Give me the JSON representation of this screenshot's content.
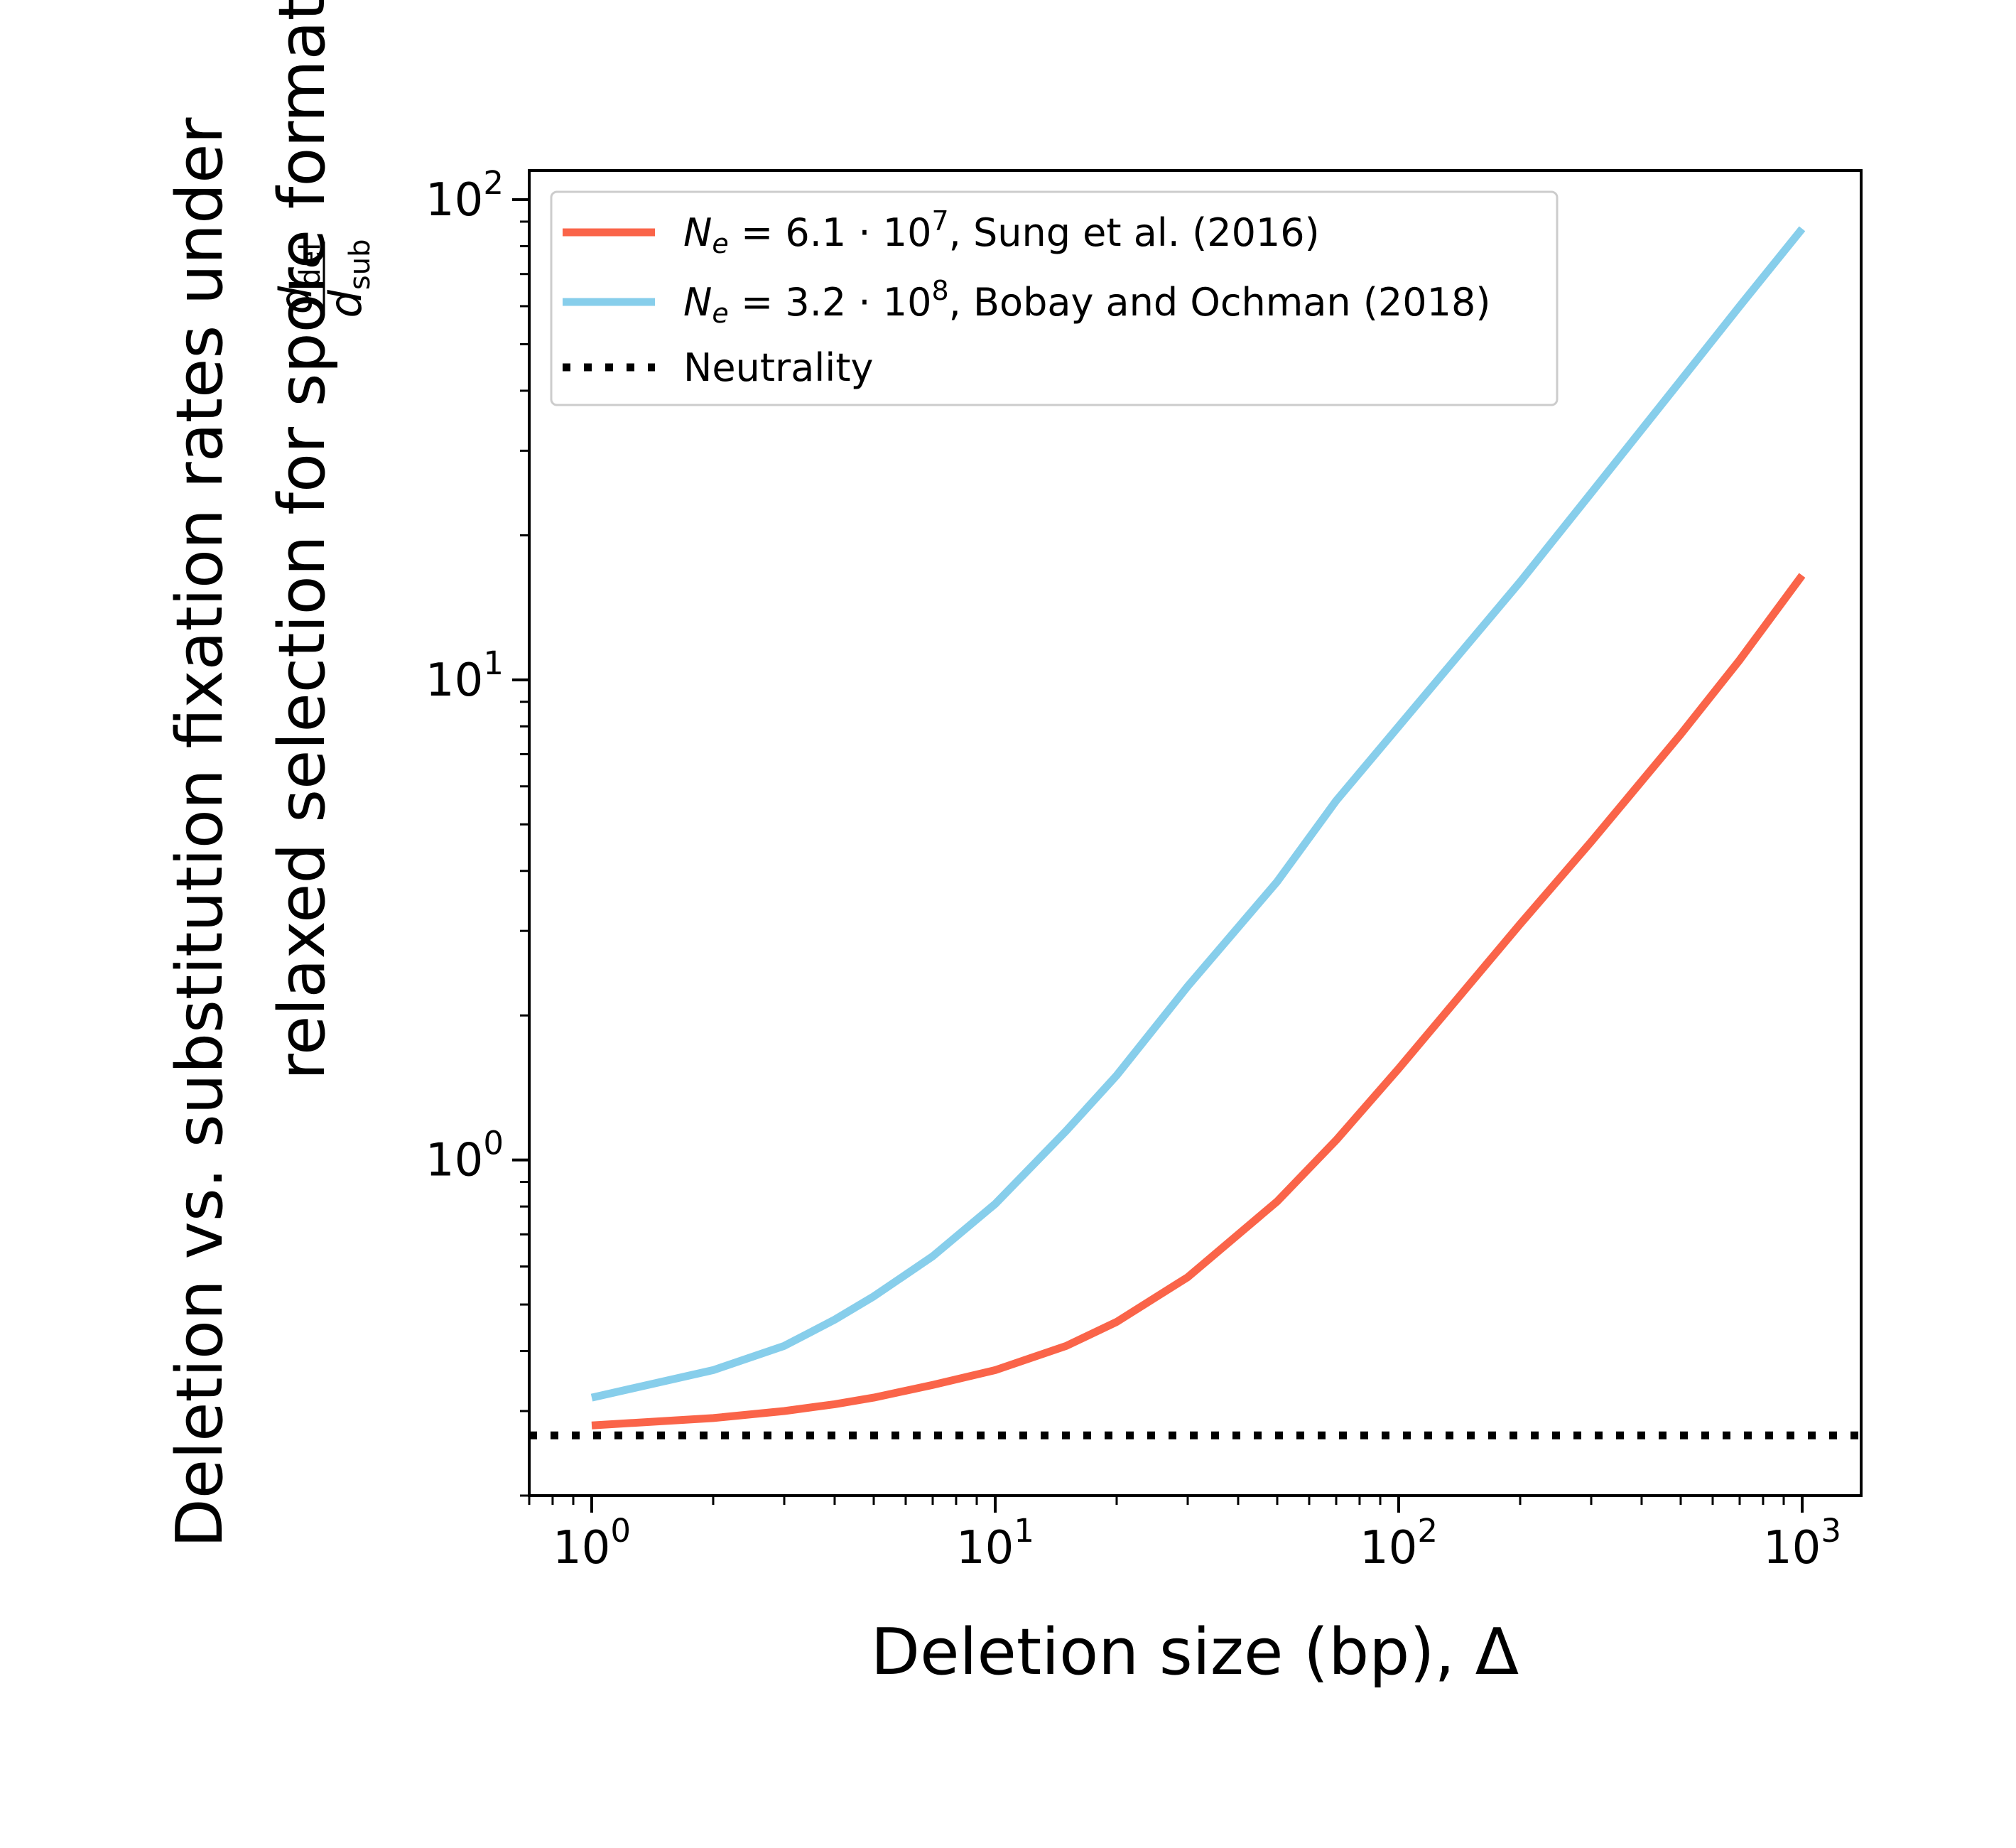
{
  "chart_data": {
    "type": "line",
    "xlabel": "Deletion size (bp), Δ",
    "ylabel_line1": "Deletion vs. substitution fixation rates under",
    "ylabel_line2": "relaxed selection for spore formation,",
    "ylabel_fraction": {
      "numerator": "d",
      "numerator_sub": "del",
      "denominator": "d",
      "denominator_sub": "sub"
    },
    "xscale": "log",
    "yscale": "log",
    "xlim": [
      0.7,
      1400
    ],
    "ylim": [
      0.2,
      115
    ],
    "x_ticks": [
      {
        "value": 1,
        "base": "10",
        "exp": "0"
      },
      {
        "value": 10,
        "base": "10",
        "exp": "1"
      },
      {
        "value": 100,
        "base": "10",
        "exp": "2"
      },
      {
        "value": 1000,
        "base": "10",
        "exp": "3"
      }
    ],
    "y_ticks": [
      {
        "value": 1,
        "base": "10",
        "exp": "0"
      },
      {
        "value": 10,
        "base": "10",
        "exp": "1"
      },
      {
        "value": 100,
        "base": "10",
        "exp": "2"
      }
    ],
    "grid": false,
    "legend_position": "upper-left",
    "series": [
      {
        "id": "sung",
        "legend_prefix": "N",
        "legend_sub": "e",
        "legend_eq": " = 6.1 · 10",
        "legend_exp": "7",
        "legend_suffix": ", Sung et al. (2016)",
        "color": "#fa6449",
        "style": "solid",
        "x": [
          1,
          2,
          3,
          4,
          5,
          7,
          10,
          15,
          20,
          30,
          50,
          70,
          100,
          200,
          300,
          500,
          700,
          1000
        ],
        "y": [
          0.28,
          0.29,
          0.3,
          0.31,
          0.32,
          0.34,
          0.365,
          0.41,
          0.46,
          0.57,
          0.82,
          1.1,
          1.55,
          3.1,
          4.6,
          7.7,
          11.0,
          16.5
        ]
      },
      {
        "id": "bobay",
        "legend_prefix": "N",
        "legend_sub": "e",
        "legend_eq": " = 3.2 · 10",
        "legend_exp": "8",
        "legend_suffix": ", Bobay and Ochman (2018)",
        "color": "#87ceeb",
        "style": "solid",
        "x": [
          1,
          2,
          3,
          4,
          5,
          7,
          10,
          15,
          20,
          30,
          50,
          70,
          100,
          200,
          300,
          500,
          700,
          1000
        ],
        "y": [
          0.32,
          0.365,
          0.41,
          0.465,
          0.52,
          0.63,
          0.81,
          1.15,
          1.5,
          2.3,
          3.8,
          5.6,
          8.0,
          16.0,
          24.5,
          42.0,
          60.0,
          87.0
        ]
      },
      {
        "id": "neutral",
        "legend_label": "Neutrality",
        "color": "#000000",
        "style": "dotted",
        "x": [
          0.7,
          1400
        ],
        "y": [
          0.267,
          0.267
        ]
      }
    ]
  }
}
